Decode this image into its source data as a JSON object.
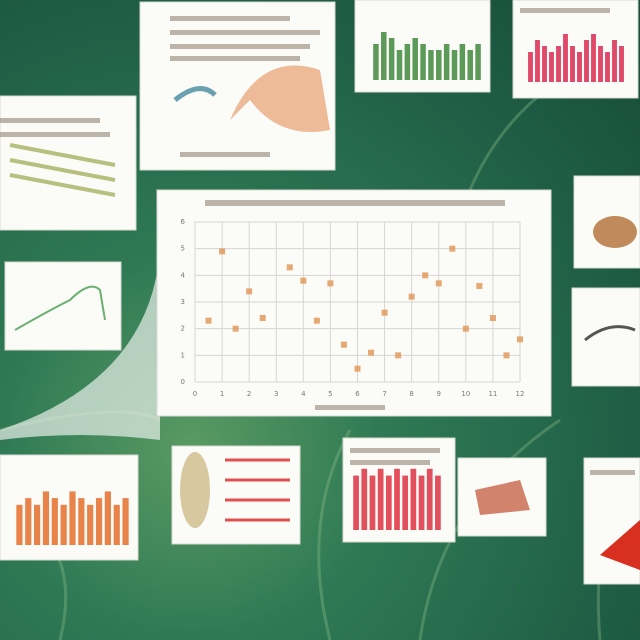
{
  "chart_data": [
    {
      "type": "scatter",
      "color": "#e39a5c",
      "x": [
        1.0,
        0.5,
        1.5,
        2.0,
        2.5,
        3.5,
        4.0,
        4.5,
        5.0,
        5.5,
        6.0,
        6.5,
        7.0,
        7.5,
        8.0,
        8.5,
        9.0,
        9.5,
        10.0,
        10.5,
        11.0,
        11.5,
        12.0
      ],
      "values": [
        4.9,
        2.3,
        2.0,
        3.4,
        2.4,
        4.3,
        3.8,
        2.3,
        3.7,
        1.4,
        0.5,
        1.1,
        2.6,
        1.0,
        3.2,
        4.0,
        3.7,
        5.0,
        2.0,
        3.6,
        2.4,
        1.0,
        1.6
      ],
      "xlim": [
        0,
        12
      ],
      "ylim": [
        0,
        6
      ],
      "xticks": [
        0,
        1,
        2,
        3,
        4,
        5,
        6,
        7,
        8,
        9,
        10,
        11,
        12
      ],
      "yticks": [
        0,
        1,
        2,
        3,
        4,
        5,
        6
      ],
      "grid": true
    },
    {
      "type": "bar",
      "color": "#5d9a5a",
      "values": [
        6,
        8,
        7,
        5,
        6,
        7,
        6,
        5,
        5,
        6,
        5,
        6,
        5,
        6
      ],
      "ylim": [
        0,
        10
      ]
    },
    {
      "type": "bar",
      "color": "#e04a6a",
      "values": [
        5,
        7,
        6,
        5,
        6,
        8,
        6,
        5,
        7,
        8,
        6,
        5,
        7,
        6
      ],
      "ylim": [
        0,
        10
      ]
    },
    {
      "type": "bar",
      "color": "#e8844a",
      "values": [
        6,
        7,
        6,
        8,
        7,
        6,
        8,
        7,
        6,
        7,
        8,
        6,
        7
      ],
      "ylim": [
        0,
        10
      ]
    },
    {
      "type": "bar",
      "color": "#e2505e",
      "values": [
        8,
        9,
        8,
        9,
        8,
        9,
        8,
        9,
        8,
        9,
        8
      ],
      "ylim": [
        0,
        10
      ]
    }
  ]
}
